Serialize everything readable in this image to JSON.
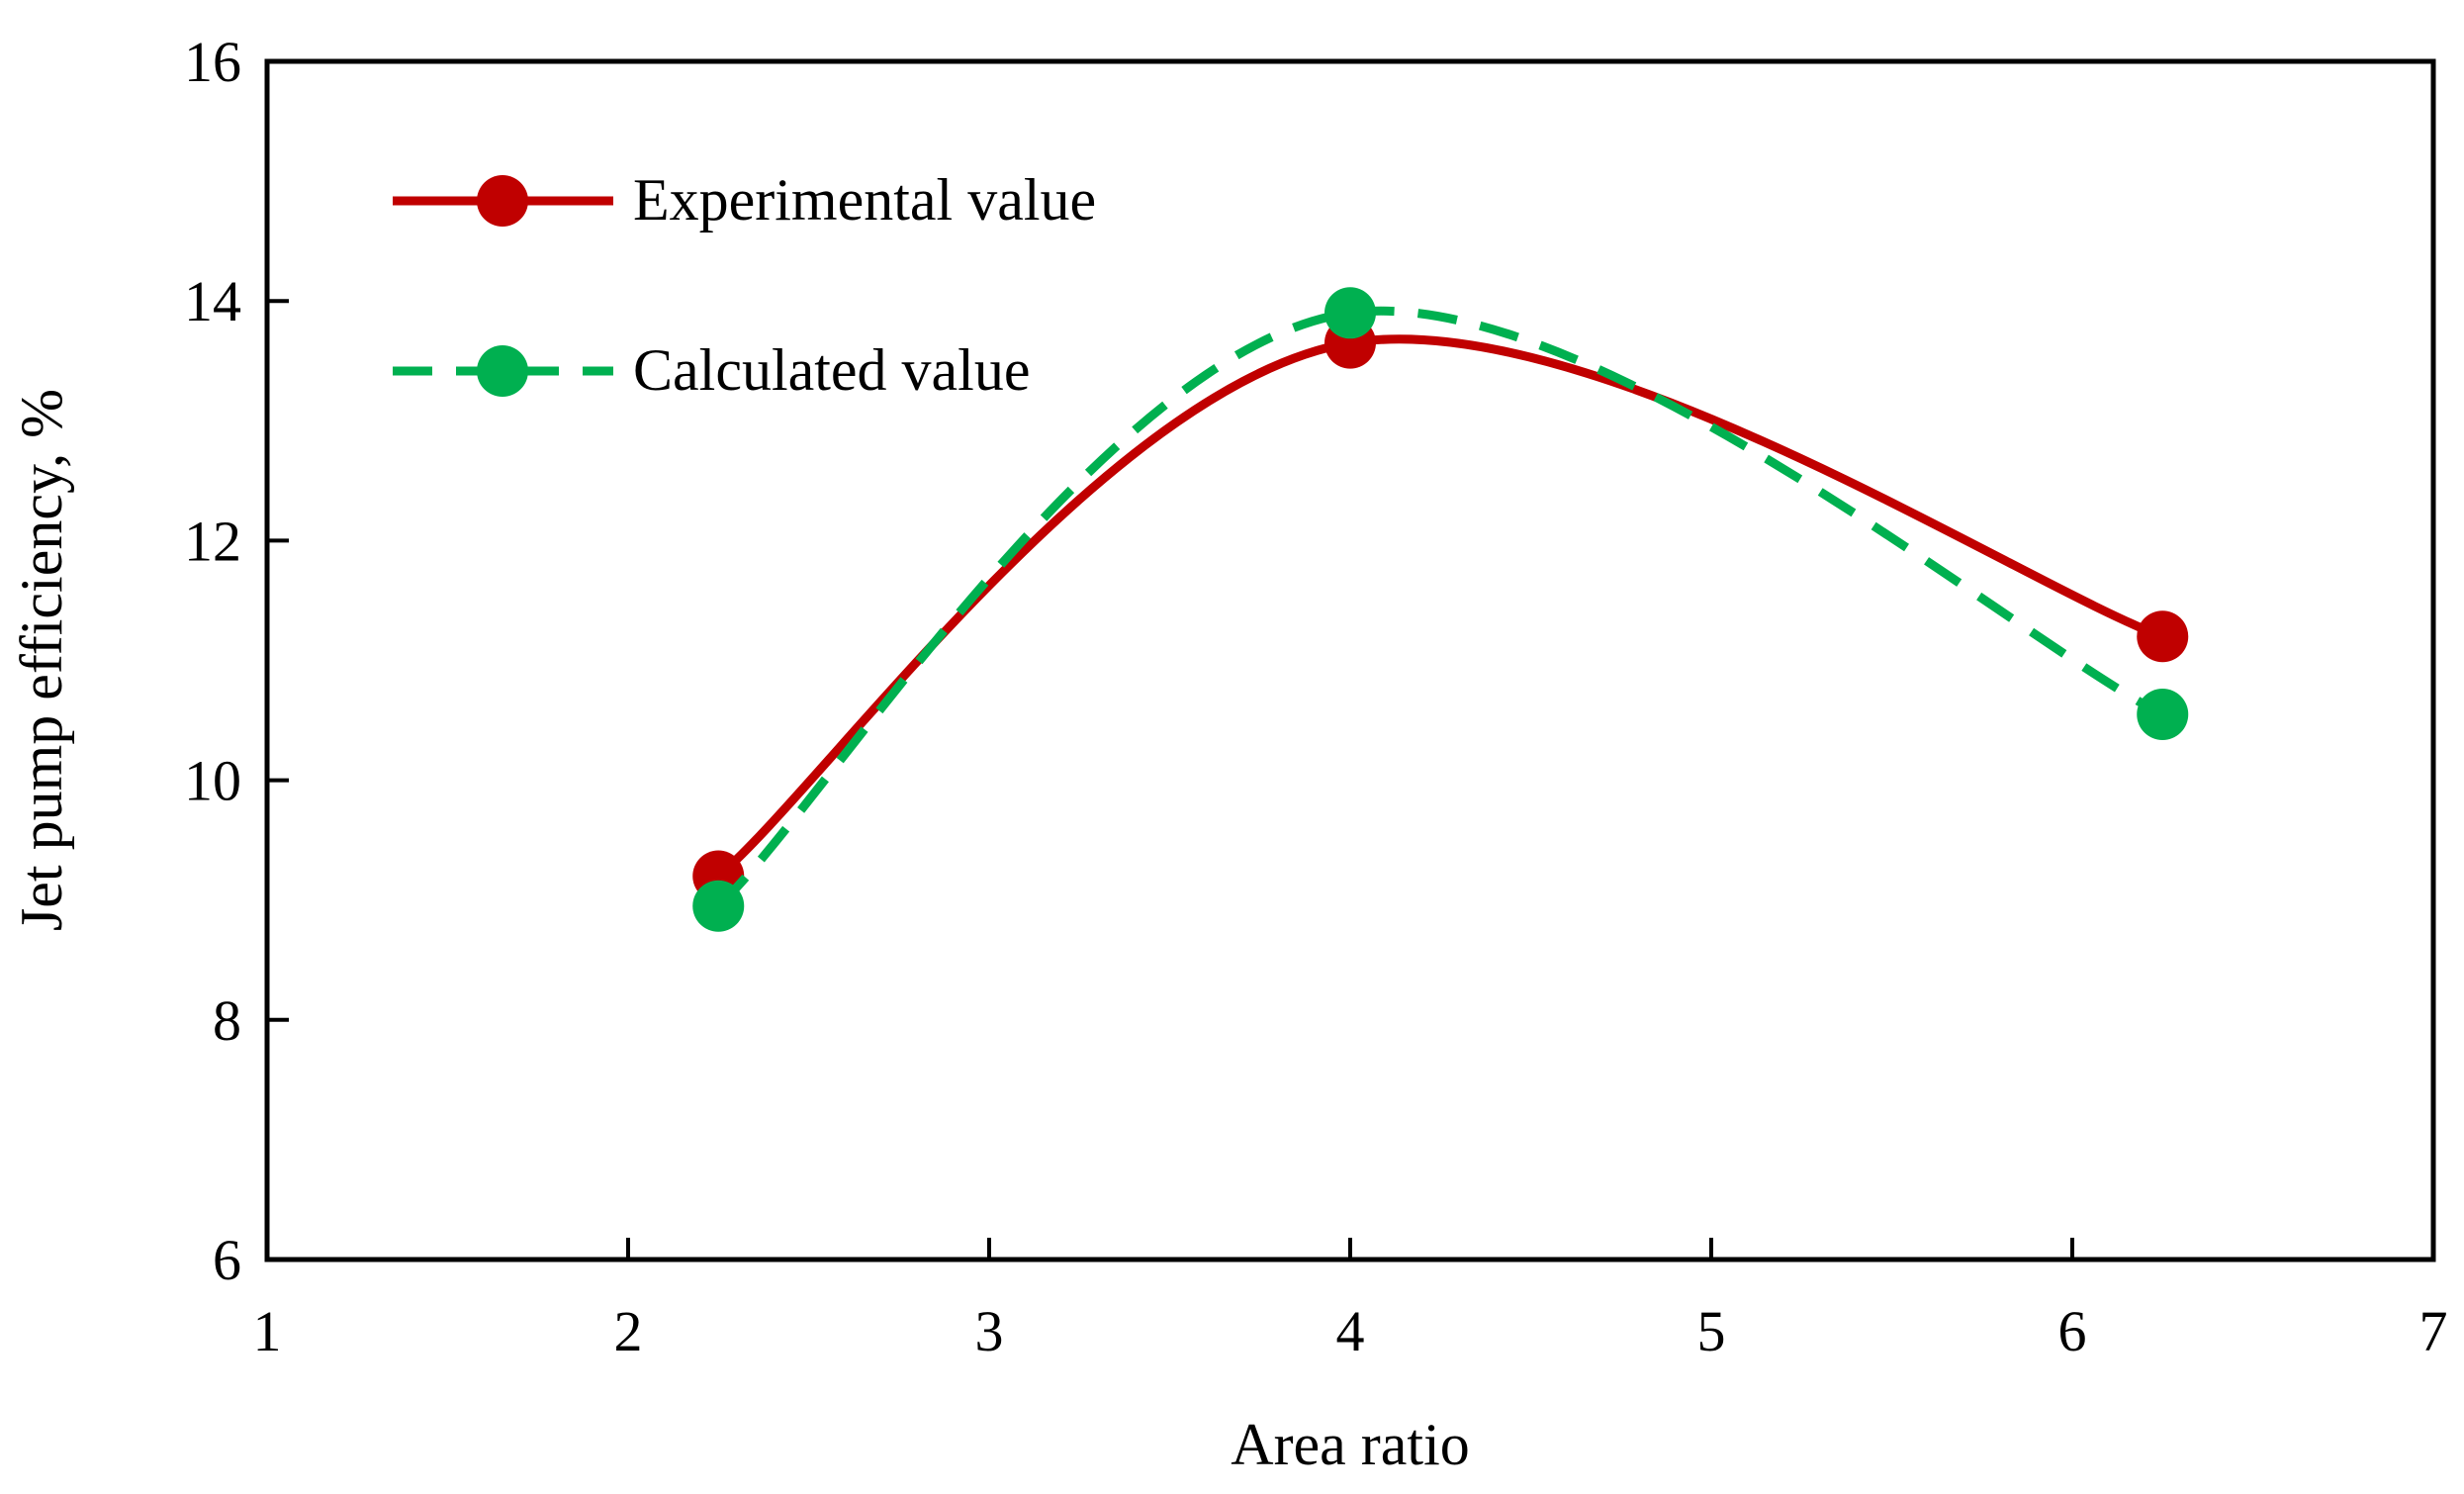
{
  "chart_data": {
    "type": "line",
    "title": "",
    "xlabel": "Area ratio",
    "ylabel": "Jet pump efficiency, %",
    "xlim": [
      1,
      7
    ],
    "ylim": [
      6,
      16
    ],
    "xticks": [
      "1",
      "2",
      "3",
      "4",
      "5",
      "6",
      "7"
    ],
    "yticks": [
      "6",
      "8",
      "10",
      "12",
      "14",
      "16"
    ],
    "grid": false,
    "legend_position": "top-left",
    "series": [
      {
        "name": "Experimental value",
        "color": "#c00000",
        "line_style": "solid",
        "marker": "circle",
        "smooth": true,
        "x": [
          2.25,
          4.0,
          6.25
        ],
        "y": [
          9.2,
          13.65,
          11.2
        ]
      },
      {
        "name": "Calculated value",
        "color": "#00b050",
        "line_style": "dashed",
        "marker": "circle",
        "smooth": true,
        "x": [
          2.25,
          4.0,
          6.25
        ],
        "y": [
          8.95,
          13.9,
          10.55
        ]
      }
    ]
  }
}
